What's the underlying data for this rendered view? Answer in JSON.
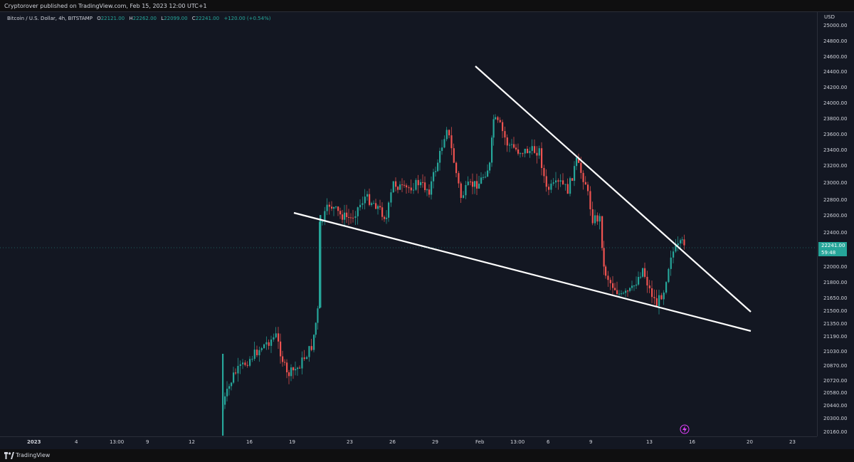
{
  "topbar": {
    "publisher_text": "Cryptorover published on TradingView.com, Feb 15, 2023 12:00 UTC+1"
  },
  "legend": {
    "symbol": "Bitcoin / U.S. Dollar, 4h, BITSTAMP",
    "open_k": "O",
    "open": "22121.00",
    "high_k": "H",
    "high": "22262.00",
    "low_k": "L",
    "low": "22099.00",
    "close_k": "C",
    "close": "22241.00",
    "change": "+120.00 (+0.54%)"
  },
  "price_axis": {
    "currency": "USD",
    "labels": [
      "25000.00",
      "24800.00",
      "24600.00",
      "24400.00",
      "24200.00",
      "24000.00",
      "23800.00",
      "23600.00",
      "23400.00",
      "23200.00",
      "23000.00",
      "22800.00",
      "22600.00",
      "22400.00",
      "22000.00",
      "21800.00",
      "21650.00",
      "21500.00",
      "21350.00",
      "21190.00",
      "21030.00",
      "20870.00",
      "20720.00",
      "20580.00",
      "20440.00",
      "20300.00",
      "20160.00"
    ],
    "current_price": "22241.00",
    "countdown": "59:48"
  },
  "time_axis": {
    "labels": [
      "2023",
      "4",
      "13:00",
      "9",
      "12",
      "16",
      "19",
      "23",
      "26",
      "29",
      "Feb",
      "13:00",
      "6",
      "9",
      "13",
      "16",
      "20",
      "23"
    ]
  },
  "colors": {
    "up": "#26a69a",
    "down": "#ef5350",
    "trendline": "#ffffff",
    "background": "#131722"
  },
  "icons": {
    "lightning": "lightning-icon"
  },
  "brand": {
    "name": "TradingView"
  }
}
